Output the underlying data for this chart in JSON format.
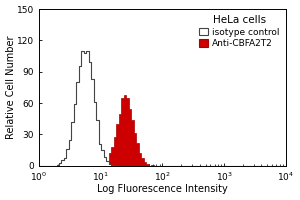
{
  "title": "HeLa cells",
  "xlabel": "Log Fluorescence Intensity",
  "ylabel": "Relative Cell Number",
  "xlim_log": [
    1,
    10000
  ],
  "ylim": [
    0,
    150
  ],
  "yticks": [
    0,
    30,
    60,
    90,
    120,
    150
  ],
  "legend_labels": [
    "isotype control",
    "Anti-CBFA2T2"
  ],
  "isotype_color": "#ffffff",
  "isotype_edge_color": "#444444",
  "anti_color": "#cc0000",
  "anti_edge_color": "#aa0000",
  "isotype_peak_x": 5.5,
  "isotype_peak_sigma": 0.32,
  "isotype_peak_y": 110,
  "anti_peak_x": 25,
  "anti_peak_sigma": 0.3,
  "anti_peak_y": 68,
  "n_samples": 4000,
  "background_color": "#ffffff",
  "title_fontsize": 7.5,
  "label_fontsize": 7,
  "tick_fontsize": 6.5
}
